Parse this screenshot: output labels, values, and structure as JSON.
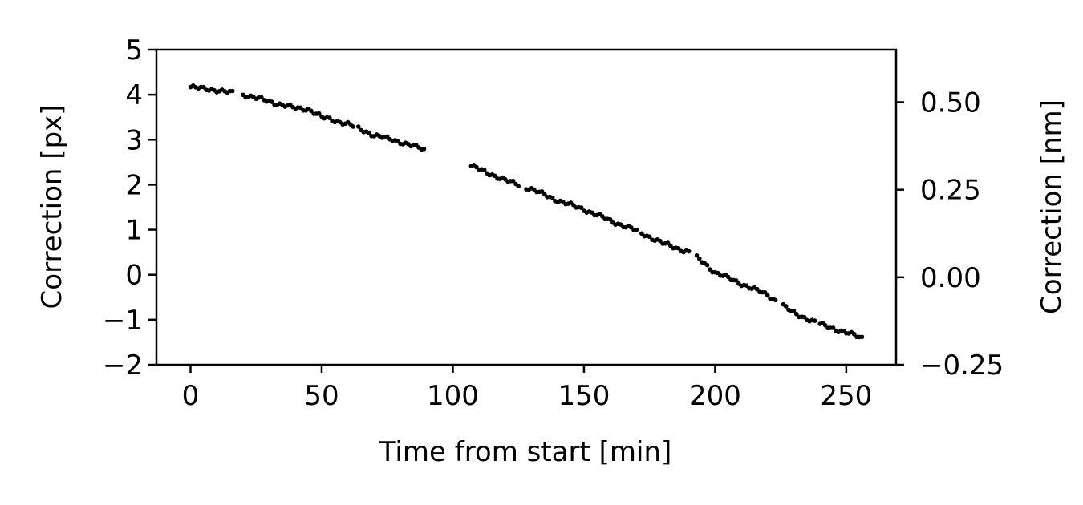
{
  "chart_data": {
    "type": "scatter",
    "title": "",
    "xlabel": "Time from start [min]",
    "ylabel": "Correction [px]",
    "ylabel_right": "Correction [nm]",
    "xlim": [
      -13,
      269
    ],
    "ylim": [
      -2,
      5
    ],
    "ylim_right": [
      -0.25,
      0.65
    ],
    "x_ticks": [
      0,
      50,
      100,
      150,
      200,
      250
    ],
    "x_tick_labels": [
      "0",
      "50",
      "100",
      "150",
      "200",
      "250"
    ],
    "y_ticks": [
      5,
      4,
      3,
      2,
      1,
      0,
      -1,
      -2
    ],
    "y_tick_labels": [
      "5",
      "4",
      "3",
      "2",
      "1",
      "0",
      "−1",
      "−2"
    ],
    "y_right_ticks": [
      0.5,
      0.25,
      0.0,
      -0.25
    ],
    "y_right_tick_labels": [
      "0.50",
      "0.25",
      "0.00",
      "−0.25"
    ],
    "grid": false,
    "marker_color": "#000000",
    "series": [
      {
        "x_start": 0,
        "x_step": 1,
        "y_anchors": [
          [
            0,
            4.17
          ],
          [
            10,
            4.1
          ],
          [
            20,
            4.0
          ],
          [
            30,
            3.85
          ],
          [
            40,
            3.7
          ],
          [
            45,
            3.68
          ],
          [
            50,
            3.5
          ],
          [
            60,
            3.35
          ],
          [
            70,
            3.1
          ],
          [
            80,
            2.95
          ],
          [
            89,
            2.78
          ],
          [
            107,
            2.42
          ],
          [
            120,
            2.1
          ],
          [
            130,
            1.9
          ],
          [
            140,
            1.65
          ],
          [
            150,
            1.45
          ],
          [
            160,
            1.2
          ],
          [
            170,
            0.98
          ],
          [
            180,
            0.7
          ],
          [
            190,
            0.5
          ],
          [
            195,
            0.3
          ],
          [
            200,
            0.05
          ],
          [
            210,
            -0.2
          ],
          [
            220,
            -0.45
          ],
          [
            230,
            -0.85
          ],
          [
            240,
            -1.1
          ],
          [
            248,
            -1.25
          ],
          [
            256,
            -1.4
          ]
        ],
        "gaps": [
          [
            16,
            20
          ],
          [
            62,
            64
          ],
          [
            89,
            107
          ],
          [
            125,
            128
          ],
          [
            170,
            172
          ],
          [
            190,
            193
          ],
          [
            223,
            226
          ],
          [
            238,
            240
          ]
        ]
      }
    ]
  }
}
